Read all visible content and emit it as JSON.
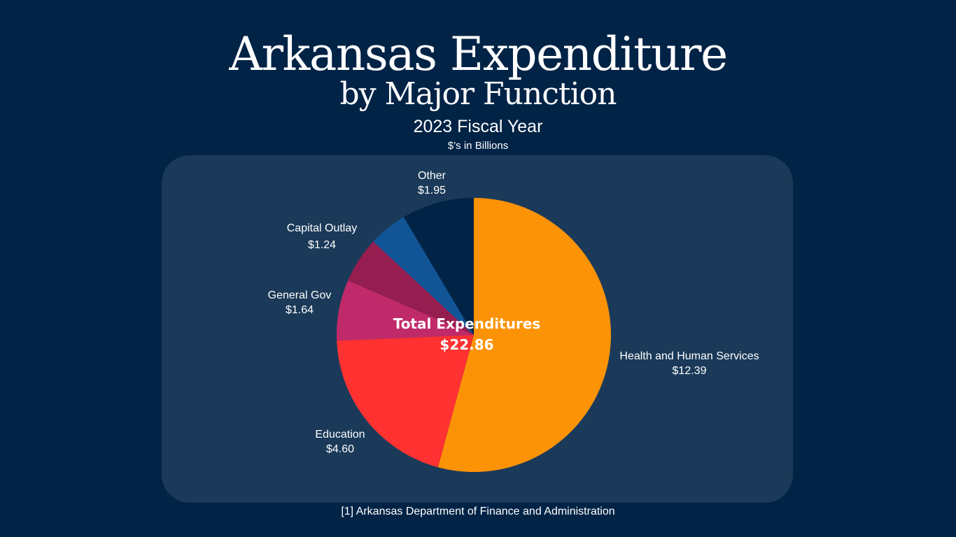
{
  "header": {
    "title_line1": "Arkansas Expenditure",
    "title_line2": "by Major Function",
    "subtitle": "2023 Fiscal Year",
    "units": "$’s in Billions"
  },
  "chart_data": {
    "type": "pie",
    "title": "Arkansas Expenditure by Major Function",
    "subtitle": "2023 Fiscal Year",
    "units": "$’s in Billions",
    "center_label": "Total Expenditures",
    "center_value": "$22.86",
    "slices": [
      {
        "name": "Health and Human Services",
        "value": 12.39,
        "value_label": "$12.39",
        "color": "#fc9306"
      },
      {
        "name": "Education",
        "value": 4.6,
        "value_label": "$4.60",
        "color": "#ff3131"
      },
      {
        "name": "General Gov",
        "value": 1.64,
        "value_label": "$1.64",
        "color": "#c12a6a"
      },
      {
        "name": "Capital Outlay",
        "value": 1.24,
        "value_label": "$1.24",
        "color": "#961d4f"
      },
      {
        "name": "",
        "value": 1.04,
        "value_label": "",
        "color": "#115597"
      },
      {
        "name": "Other",
        "value": 1.95,
        "value_label": "$1.95",
        "color": "#012346"
      }
    ]
  },
  "footer": {
    "source": "[1] Arkansas Department of Finance and Administration"
  }
}
